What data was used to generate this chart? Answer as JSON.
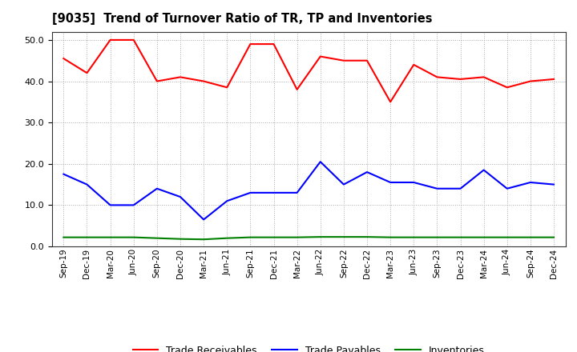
{
  "title": "[9035]  Trend of Turnover Ratio of TR, TP and Inventories",
  "x_labels": [
    "Sep-19",
    "Dec-19",
    "Mar-20",
    "Jun-20",
    "Sep-20",
    "Dec-20",
    "Mar-21",
    "Jun-21",
    "Sep-21",
    "Dec-21",
    "Mar-22",
    "Jun-22",
    "Sep-22",
    "Dec-22",
    "Mar-23",
    "Jun-23",
    "Sep-23",
    "Dec-23",
    "Mar-24",
    "Jun-24",
    "Sep-24",
    "Dec-24"
  ],
  "trade_receivables": [
    45.5,
    42.0,
    50.0,
    50.0,
    40.0,
    41.0,
    40.0,
    38.5,
    49.0,
    49.0,
    38.0,
    46.0,
    45.0,
    45.0,
    35.0,
    44.0,
    41.0,
    40.5,
    41.0,
    38.5,
    40.0,
    40.5
  ],
  "trade_payables": [
    17.5,
    15.0,
    10.0,
    10.0,
    14.0,
    12.0,
    6.5,
    11.0,
    13.0,
    13.0,
    13.0,
    20.5,
    15.0,
    18.0,
    15.5,
    15.5,
    14.0,
    14.0,
    18.5,
    14.0,
    15.5,
    15.0
  ],
  "inventories": [
    2.2,
    2.2,
    2.2,
    2.2,
    2.0,
    1.8,
    1.7,
    2.0,
    2.2,
    2.2,
    2.2,
    2.3,
    2.3,
    2.3,
    2.2,
    2.2,
    2.2,
    2.2,
    2.2,
    2.2,
    2.2,
    2.2
  ],
  "ylim": [
    0,
    52
  ],
  "yticks": [
    0.0,
    10.0,
    20.0,
    30.0,
    40.0,
    50.0
  ],
  "tr_color": "#FF0000",
  "tp_color": "#0000FF",
  "inv_color": "#008000",
  "bg_color": "#FFFFFF",
  "grid_color": "#AAAAAA",
  "legend_labels": [
    "Trade Receivables",
    "Trade Payables",
    "Inventories"
  ]
}
